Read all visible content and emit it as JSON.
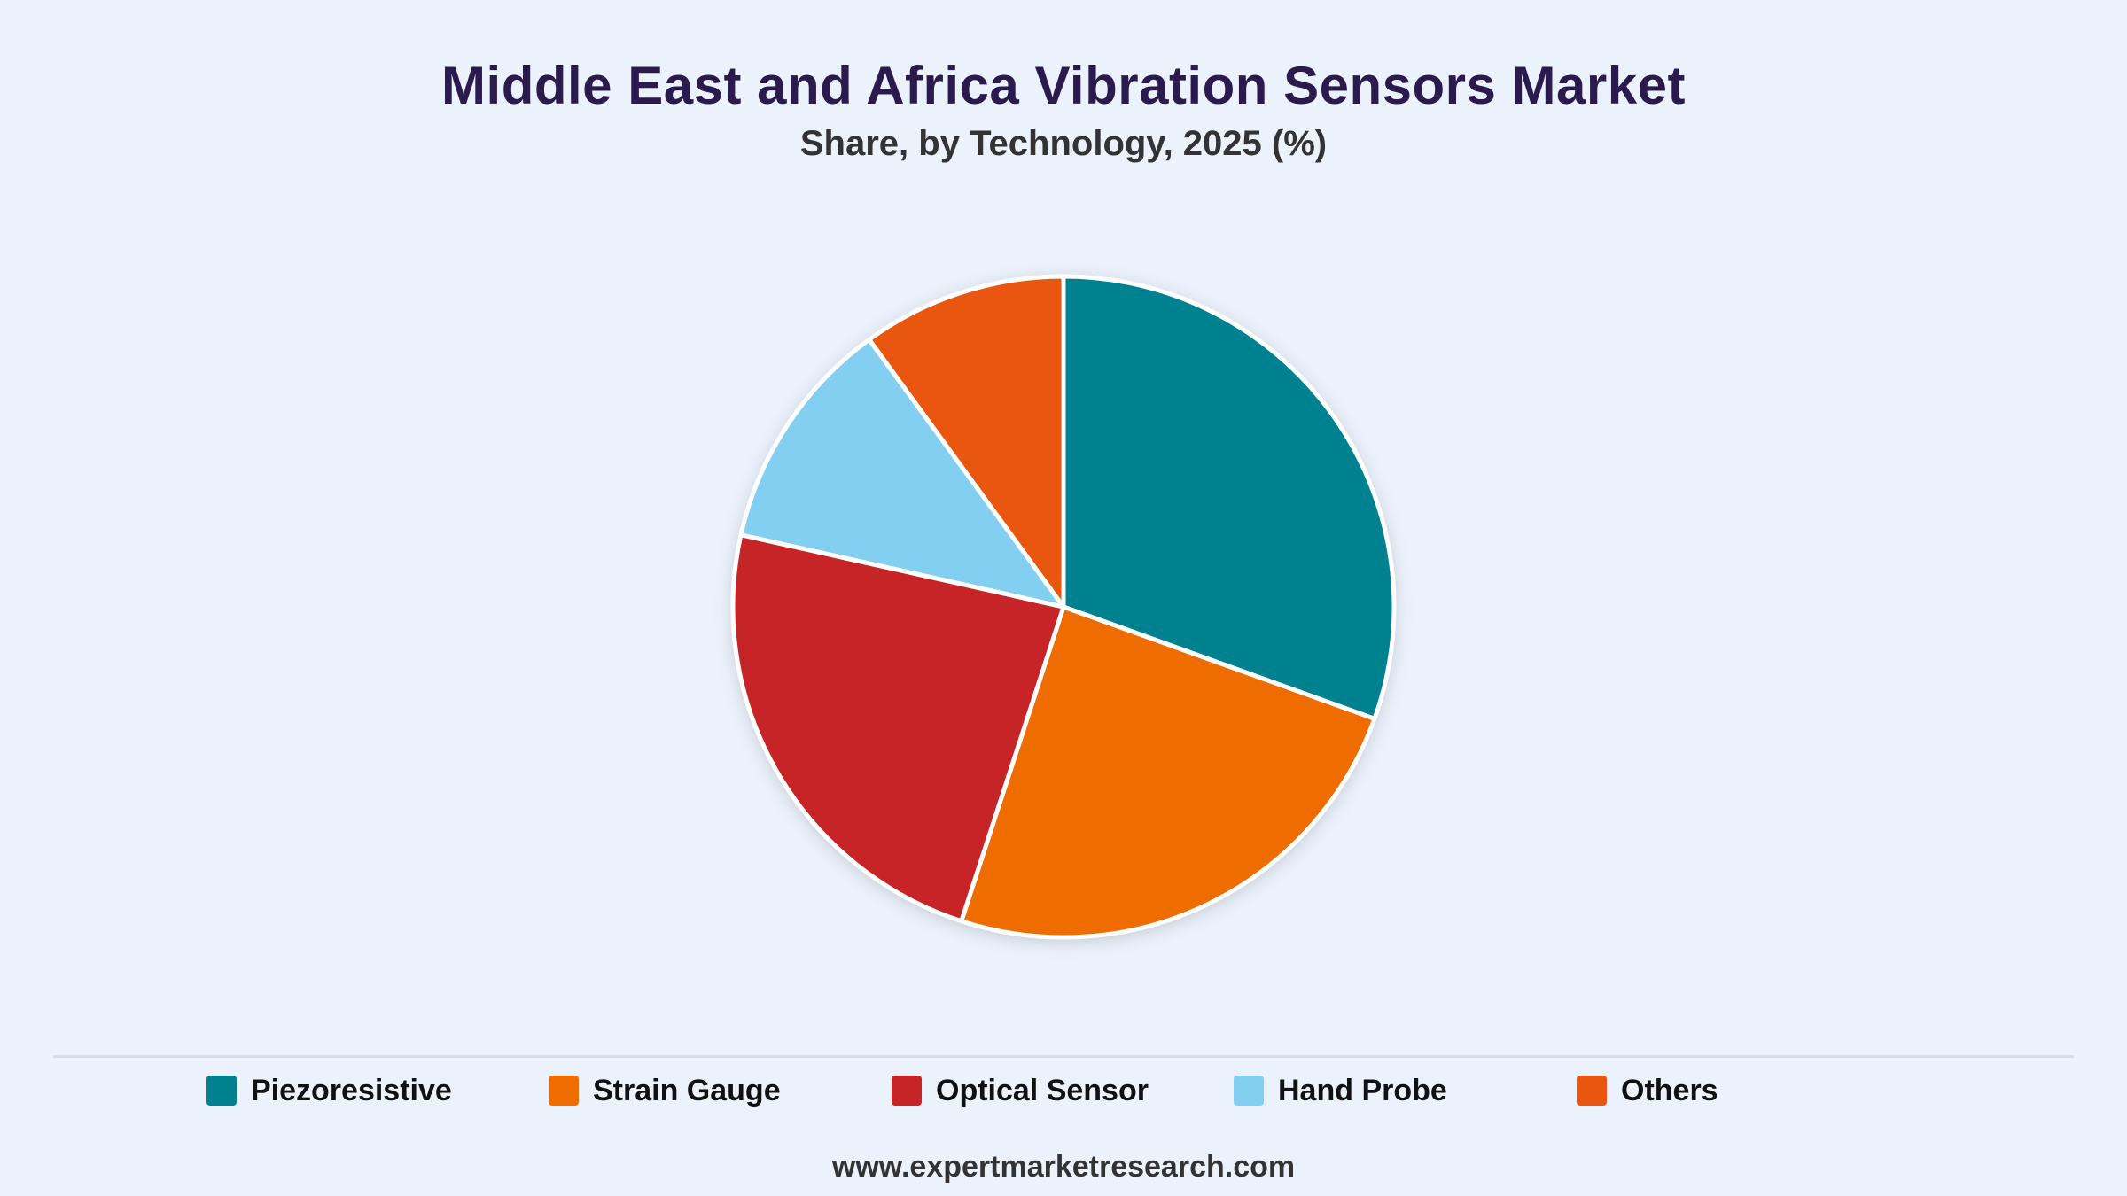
{
  "header": {
    "title": "Middle East and Africa Vibration Sensors Market",
    "subtitle": "Share, by Technology, 2025 (%)"
  },
  "chart_data": {
    "type": "pie",
    "title": "Middle East and Africa Vibration Sensors Market",
    "subtitle": "Share, by Technology, 2025 (%)",
    "categories": [
      "Piezoresistive",
      "Strain Gauge",
      "Optical Sensor",
      "Hand Probe",
      "Others"
    ],
    "values": [
      30.5,
      24.5,
      23.5,
      11.5,
      10.0
    ],
    "colors": [
      "#00818f",
      "#ef6c00",
      "#c62427",
      "#82cff2",
      "#e8560f"
    ],
    "start_angle_deg": 0,
    "direction": "clockwise",
    "legend_position": "bottom"
  },
  "legend": {
    "items": [
      {
        "label": "Piezoresistive",
        "color": "#00818f"
      },
      {
        "label": "Strain Gauge",
        "color": "#ef6c00"
      },
      {
        "label": "Optical Sensor",
        "color": "#c62427"
      },
      {
        "label": "Hand Probe",
        "color": "#82cff2"
      },
      {
        "label": "Others",
        "color": "#e8560f"
      }
    ]
  },
  "footer": {
    "source": "www.expertmarketresearch.com"
  }
}
